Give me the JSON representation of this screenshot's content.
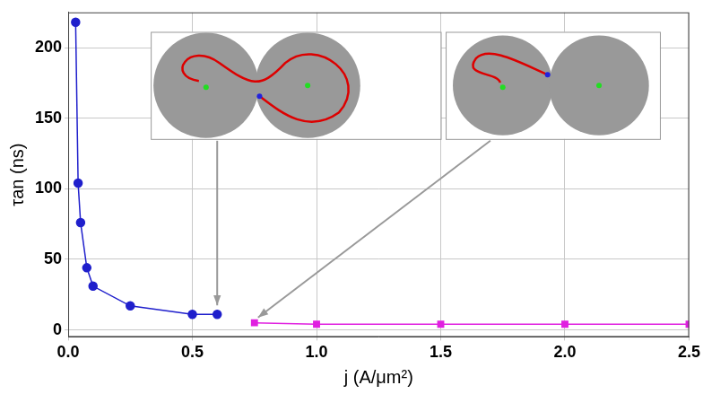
{
  "chart_data": {
    "type": "line",
    "x_label": "j (A/μm²)",
    "y_label": "τan (ns)",
    "series": [
      {
        "color": "#1f1fcc",
        "marker": "circle",
        "line_style": "solid",
        "x": [
          0.03,
          0.04,
          0.05,
          0.075,
          0.1,
          0.25,
          0.5,
          0.6
        ],
        "values": [
          218,
          104,
          76,
          44,
          31,
          17,
          11,
          11
        ]
      },
      {
        "color": "#e020e0",
        "marker": "square",
        "line_style": "solid",
        "x": [
          0.75,
          1.0,
          1.5,
          2.0,
          2.5
        ],
        "values": [
          5,
          4,
          4,
          4,
          4
        ]
      }
    ],
    "xlim": [
      0,
      2.5
    ],
    "xticks": [
      {
        "value": 0,
        "label": "0.0"
      },
      0.5,
      {
        "value": 1,
        "label": "1.0"
      },
      1.5,
      {
        "value": 2,
        "label": "2.0"
      },
      2.5
    ],
    "ylim": [
      -5,
      225
    ],
    "yticks": [
      0,
      50,
      100,
      150,
      200
    ],
    "grid": true
  }
}
